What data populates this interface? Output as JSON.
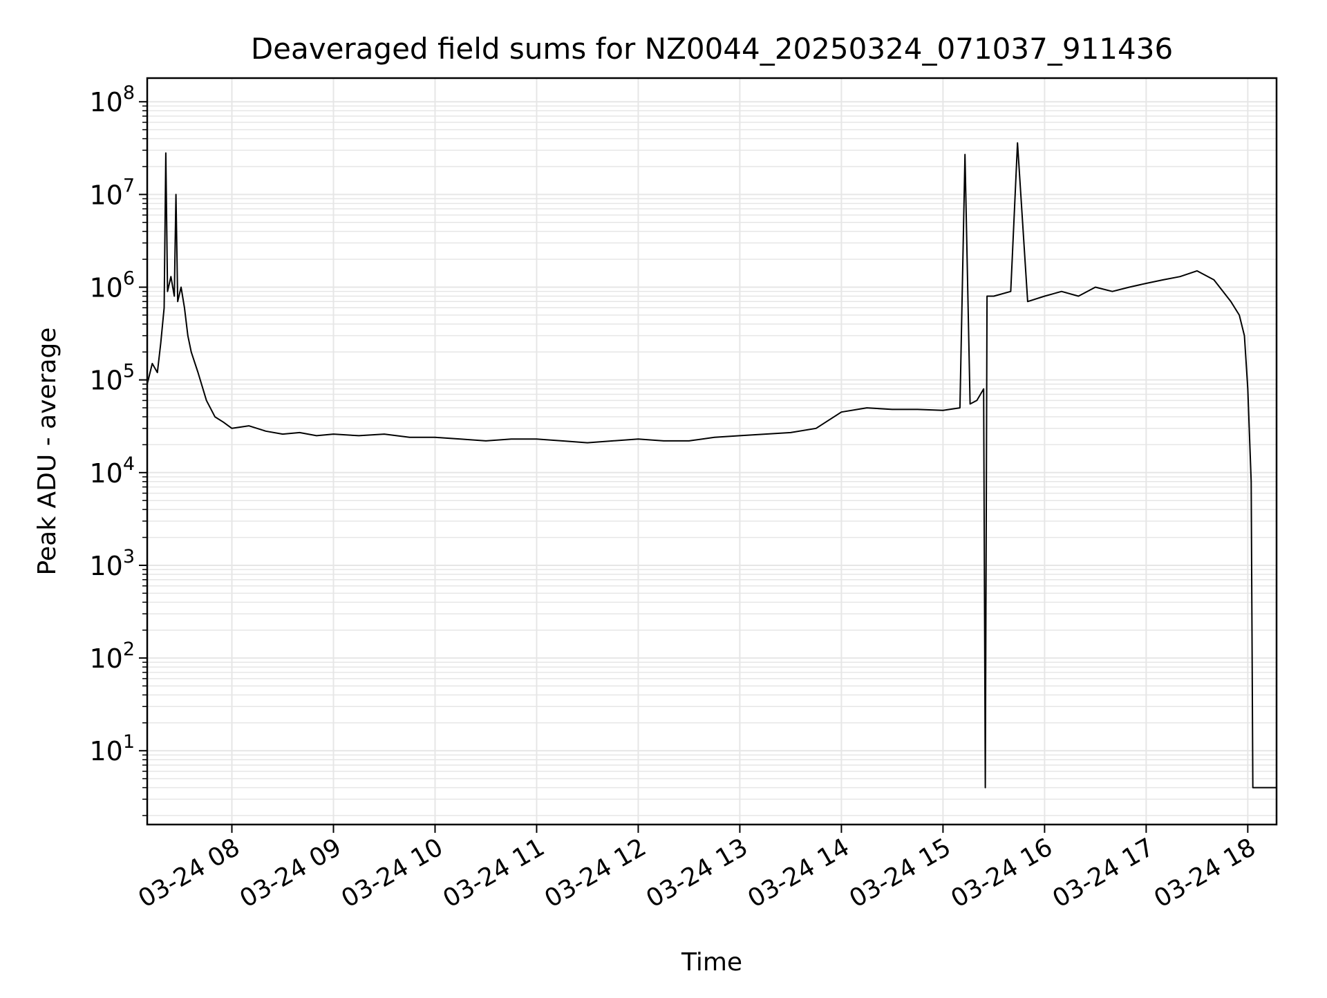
{
  "chart_data": {
    "type": "line",
    "title": "Deaveraged field sums for NZ0044_20250324_071037_911436",
    "xlabel": "Time",
    "ylabel": "Peak ADU - average",
    "yscale": "log",
    "ylim": [
      1.6,
      180000000
    ],
    "xlim": [
      "2025-03-24 07:10",
      "2025-03-24 18:17"
    ],
    "grid": "on (major and minor, light gray)",
    "line_color": "#000000",
    "x_ticks": [
      {
        "value": "2025-03-24 08:00",
        "label": "03-24 08"
      },
      {
        "value": "2025-03-24 09:00",
        "label": "03-24 09"
      },
      {
        "value": "2025-03-24 10:00",
        "label": "03-24 10"
      },
      {
        "value": "2025-03-24 11:00",
        "label": "03-24 11"
      },
      {
        "value": "2025-03-24 12:00",
        "label": "03-24 12"
      },
      {
        "value": "2025-03-24 13:00",
        "label": "03-24 13"
      },
      {
        "value": "2025-03-24 14:00",
        "label": "03-24 14"
      },
      {
        "value": "2025-03-24 15:00",
        "label": "03-24 15"
      },
      {
        "value": "2025-03-24 16:00",
        "label": "03-24 16"
      },
      {
        "value": "2025-03-24 17:00",
        "label": "03-24 17"
      },
      {
        "value": "2025-03-24 18:00",
        "label": "03-24 18"
      }
    ],
    "y_ticks": [
      {
        "value": 10,
        "base": "10",
        "exp": "1"
      },
      {
        "value": 100,
        "base": "10",
        "exp": "2"
      },
      {
        "value": 1000,
        "base": "10",
        "exp": "3"
      },
      {
        "value": 10000,
        "base": "10",
        "exp": "4"
      },
      {
        "value": 100000,
        "base": "10",
        "exp": "5"
      },
      {
        "value": 1000000,
        "base": "10",
        "exp": "6"
      },
      {
        "value": 10000000,
        "base": "10",
        "exp": "7"
      },
      {
        "value": 100000000,
        "base": "10",
        "exp": "8"
      }
    ],
    "series": [
      {
        "x": [
          "2025-03-24 07:10",
          "2025-03-24 07:13",
          "2025-03-24 07:16",
          "2025-03-24 07:18",
          "2025-03-24 07:20",
          "2025-03-24 07:21",
          "2025-03-24 07:22",
          "2025-03-24 07:24",
          "2025-03-24 07:26",
          "2025-03-24 07:27",
          "2025-03-24 07:28",
          "2025-03-24 07:30",
          "2025-03-24 07:32",
          "2025-03-24 07:34",
          "2025-03-24 07:36",
          "2025-03-24 07:40",
          "2025-03-24 07:45",
          "2025-03-24 07:50",
          "2025-03-24 07:55",
          "2025-03-24 08:00",
          "2025-03-24 08:10",
          "2025-03-24 08:20",
          "2025-03-24 08:30",
          "2025-03-24 08:40",
          "2025-03-24 08:50",
          "2025-03-24 09:00",
          "2025-03-24 09:15",
          "2025-03-24 09:30",
          "2025-03-24 09:45",
          "2025-03-24 10:00",
          "2025-03-24 10:15",
          "2025-03-24 10:30",
          "2025-03-24 10:45",
          "2025-03-24 11:00",
          "2025-03-24 11:15",
          "2025-03-24 11:30",
          "2025-03-24 11:45",
          "2025-03-24 12:00",
          "2025-03-24 12:15",
          "2025-03-24 12:30",
          "2025-03-24 12:45",
          "2025-03-24 13:00",
          "2025-03-24 13:15",
          "2025-03-24 13:30",
          "2025-03-24 13:45",
          "2025-03-24 14:00",
          "2025-03-24 14:15",
          "2025-03-24 14:30",
          "2025-03-24 14:45",
          "2025-03-24 15:00",
          "2025-03-24 15:10",
          "2025-03-24 15:13",
          "2025-03-24 15:16",
          "2025-03-24 15:20",
          "2025-03-24 15:24",
          "2025-03-24 15:25",
          "2025-03-24 15:26",
          "2025-03-24 15:30",
          "2025-03-24 15:40",
          "2025-03-24 15:44",
          "2025-03-24 15:50",
          "2025-03-24 16:00",
          "2025-03-24 16:10",
          "2025-03-24 16:20",
          "2025-03-24 16:30",
          "2025-03-24 16:40",
          "2025-03-24 16:50",
          "2025-03-24 17:00",
          "2025-03-24 17:10",
          "2025-03-24 17:20",
          "2025-03-24 17:30",
          "2025-03-24 17:40",
          "2025-03-24 17:50",
          "2025-03-24 17:55",
          "2025-03-24 17:58",
          "2025-03-24 18:00",
          "2025-03-24 18:02",
          "2025-03-24 18:03",
          "2025-03-24 18:17"
        ],
        "y": [
          90000,
          150000,
          120000,
          250000,
          600000,
          28000000,
          900000,
          1300000,
          800000,
          10000000,
          700000,
          1000000,
          600000,
          300000,
          200000,
          120000,
          60000,
          40000,
          35000,
          30000,
          32000,
          28000,
          26000,
          27000,
          25000,
          26000,
          25000,
          26000,
          24000,
          24000,
          23000,
          22000,
          23000,
          23000,
          22000,
          21000,
          22000,
          23000,
          22000,
          22000,
          24000,
          25000,
          26000,
          27000,
          30000,
          45000,
          50000,
          48000,
          48000,
          47000,
          50000,
          27000000,
          55000,
          60000,
          80000,
          4,
          800000,
          800000,
          900000,
          36000000,
          700000,
          800000,
          900000,
          800000,
          1000000,
          900000,
          1000000,
          1100000,
          1200000,
          1300000,
          1500000,
          1200000,
          700000,
          500000,
          300000,
          80000,
          8000,
          4,
          4
        ]
      }
    ]
  }
}
